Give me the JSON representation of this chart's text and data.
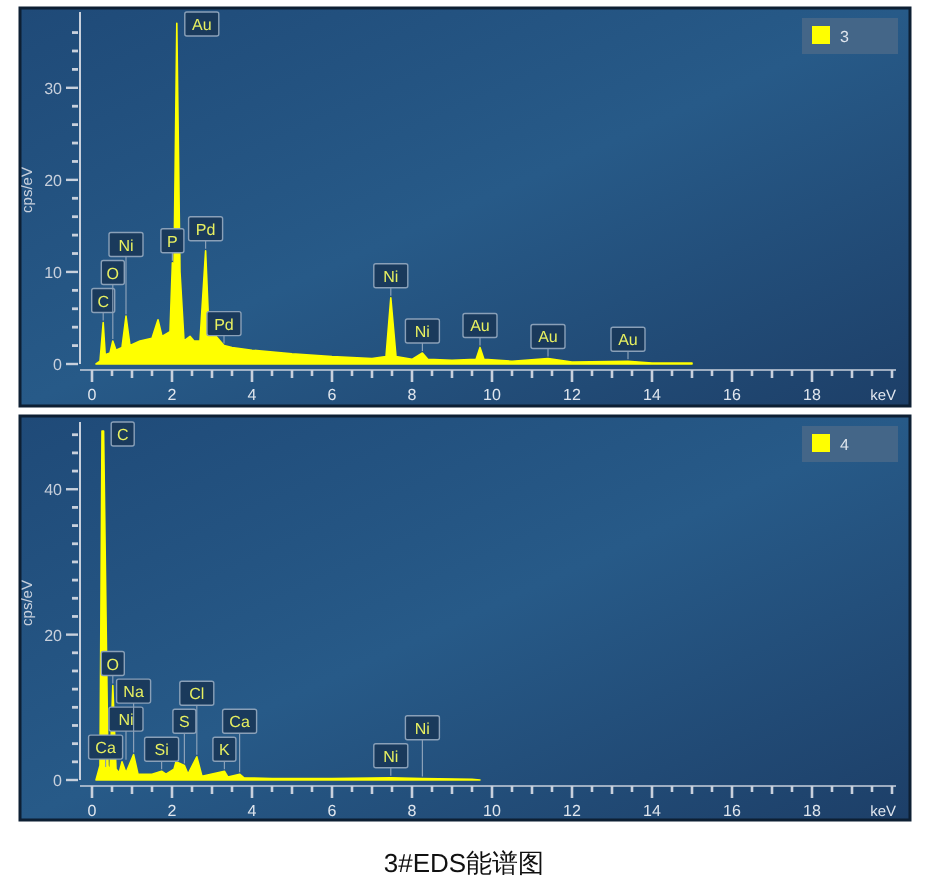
{
  "chart_data": [
    {
      "type": "area",
      "ylabel": "cps/eV",
      "xlabel": "keV",
      "xlim": [
        -0.3,
        20.1
      ],
      "ylim": [
        0,
        37.8
      ],
      "xticks": [
        0,
        2,
        4,
        6,
        8,
        10,
        12,
        14,
        16,
        18,
        {
          "value": 0.5,
          "label": null
        },
        {
          "value": 1,
          "label": null
        },
        {
          "value": 1.5,
          "label": null
        },
        {
          "value": 2.5,
          "label": null
        },
        {
          "value": 3,
          "label": null
        },
        {
          "value": 3.5,
          "label": null
        },
        {
          "value": 4.5,
          "label": null
        },
        {
          "value": 5,
          "label": null
        },
        {
          "value": 5.5,
          "label": null
        },
        {
          "value": 6.5,
          "label": null
        },
        {
          "value": 7,
          "label": null
        },
        {
          "value": 7.5,
          "label": null
        },
        {
          "value": 8.5,
          "label": null
        },
        {
          "value": 9,
          "label": null
        },
        {
          "value": 9.5,
          "label": null
        },
        {
          "value": 10.5,
          "label": null
        },
        {
          "value": 11,
          "label": null
        },
        {
          "value": 11.5,
          "label": null
        },
        {
          "value": 12.5,
          "label": null
        },
        {
          "value": 13,
          "label": null
        },
        {
          "value": 13.5,
          "label": null
        },
        {
          "value": 14.5,
          "label": null
        },
        {
          "value": 15,
          "label": null
        },
        {
          "value": 15.5,
          "label": null
        },
        {
          "value": 16.5,
          "label": null
        },
        {
          "value": 17,
          "label": null
        },
        {
          "value": 17.5,
          "label": null
        },
        {
          "value": 18.5,
          "label": null
        },
        {
          "value": 19,
          "label": null
        },
        {
          "value": 19.5,
          "label": null
        },
        {
          "value": 20,
          "label": null
        }
      ],
      "yticks": [
        0,
        10,
        20,
        30,
        {
          "value": 2,
          "label": null
        },
        {
          "value": 4,
          "label": null
        },
        {
          "value": 6,
          "label": null
        },
        {
          "value": 8,
          "label": null
        },
        {
          "value": 12,
          "label": null
        },
        {
          "value": 14,
          "label": null
        },
        {
          "value": 16,
          "label": null
        },
        {
          "value": 18,
          "label": null
        },
        {
          "value": 22,
          "label": null
        },
        {
          "value": 24,
          "label": null
        },
        {
          "value": 26,
          "label": null
        },
        {
          "value": 28,
          "label": null
        },
        {
          "value": 32,
          "label": null
        },
        {
          "value": 34,
          "label": null
        },
        {
          "value": 36,
          "label": null
        }
      ],
      "grid": false,
      "legend": "top right",
      "series": [
        {
          "name": "3",
          "color": "#ffff00",
          "x": [
            0.1,
            0.2,
            0.28,
            0.33,
            0.45,
            0.52,
            0.6,
            0.75,
            0.85,
            0.95,
            1.2,
            1.5,
            1.65,
            1.75,
            1.95,
            2.01,
            2.05,
            2.12,
            2.2,
            2.3,
            2.45,
            2.55,
            2.7,
            2.84,
            2.92,
            3.0,
            3.1,
            3.3,
            3.5,
            4,
            5,
            6,
            7,
            7.35,
            7.47,
            7.6,
            8.0,
            8.26,
            8.4,
            9.0,
            9.6,
            9.7,
            9.8,
            10.5,
            11.4,
            12,
            13.4,
            14,
            15
          ],
          "values": [
            0,
            0.3,
            4.5,
            1,
            1.2,
            2.5,
            1.5,
            1.8,
            5.2,
            2,
            2.5,
            2.8,
            4.8,
            3,
            3.5,
            11,
            10.5,
            37,
            10,
            2.5,
            3,
            2.5,
            2.5,
            12.3,
            4,
            5.5,
            3,
            2,
            1.8,
            1.5,
            1.1,
            0.8,
            0.6,
            0.8,
            7.2,
            0.8,
            0.5,
            1.2,
            0.5,
            0.4,
            0.5,
            1.8,
            0.5,
            0.3,
            0.6,
            0.2,
            0.3,
            0.1,
            0.1
          ]
        }
      ],
      "annotations": [
        {
          "text": "C",
          "x": 0.28,
          "y": 4.5
        },
        {
          "text": "O",
          "x": 0.52,
          "y": 2.5
        },
        {
          "text": "Ni",
          "x": 0.85,
          "y": 5.2
        },
        {
          "text": "P",
          "x": 2.01,
          "y": 11
        },
        {
          "text": "Au",
          "x": 2.12,
          "y": 37
        },
        {
          "text": "Pd",
          "x": 2.84,
          "y": 12.3
        },
        {
          "text": "Pd",
          "x": 3.3,
          "y": 2
        },
        {
          "text": "Ni",
          "x": 7.47,
          "y": 7.2
        },
        {
          "text": "Ni",
          "x": 8.26,
          "y": 1.2
        },
        {
          "text": "Au",
          "x": 9.7,
          "y": 1.8
        },
        {
          "text": "Au",
          "x": 11.4,
          "y": 0.6
        },
        {
          "text": "Au",
          "x": 13.4,
          "y": 0.3
        }
      ]
    },
    {
      "type": "area",
      "ylabel": "cps/eV",
      "xlabel": "keV",
      "xlim": [
        -0.3,
        20.1
      ],
      "ylim": [
        0,
        48.7
      ],
      "xticks": [
        0,
        2,
        4,
        6,
        8,
        10,
        12,
        14,
        16,
        18,
        {
          "value": 0.5,
          "label": null
        },
        {
          "value": 1,
          "label": null
        },
        {
          "value": 1.5,
          "label": null
        },
        {
          "value": 2.5,
          "label": null
        },
        {
          "value": 3,
          "label": null
        },
        {
          "value": 3.5,
          "label": null
        },
        {
          "value": 4.5,
          "label": null
        },
        {
          "value": 5,
          "label": null
        },
        {
          "value": 5.5,
          "label": null
        },
        {
          "value": 6.5,
          "label": null
        },
        {
          "value": 7,
          "label": null
        },
        {
          "value": 7.5,
          "label": null
        },
        {
          "value": 8.5,
          "label": null
        },
        {
          "value": 9,
          "label": null
        },
        {
          "value": 9.5,
          "label": null
        },
        {
          "value": 10.5,
          "label": null
        },
        {
          "value": 11,
          "label": null
        },
        {
          "value": 11.5,
          "label": null
        },
        {
          "value": 12.5,
          "label": null
        },
        {
          "value": 13,
          "label": null
        },
        {
          "value": 13.5,
          "label": null
        },
        {
          "value": 14.5,
          "label": null
        },
        {
          "value": 15,
          "label": null
        },
        {
          "value": 15.5,
          "label": null
        },
        {
          "value": 16.5,
          "label": null
        },
        {
          "value": 17,
          "label": null
        },
        {
          "value": 17.5,
          "label": null
        },
        {
          "value": 18.5,
          "label": null
        },
        {
          "value": 19,
          "label": null
        },
        {
          "value": 19.5,
          "label": null
        },
        {
          "value": 20,
          "label": null
        }
      ],
      "yticks": [
        0,
        20,
        40,
        {
          "value": 2.5,
          "label": null
        },
        {
          "value": 5,
          "label": null
        },
        {
          "value": 7.5,
          "label": null
        },
        {
          "value": 10,
          "label": null
        },
        {
          "value": 12.5,
          "label": null
        },
        {
          "value": 15,
          "label": null
        },
        {
          "value": 17.5,
          "label": null
        },
        {
          "value": 22.5,
          "label": null
        },
        {
          "value": 25,
          "label": null
        },
        {
          "value": 27.5,
          "label": null
        },
        {
          "value": 30,
          "label": null
        },
        {
          "value": 32.5,
          "label": null
        },
        {
          "value": 35,
          "label": null
        },
        {
          "value": 37.5,
          "label": null
        },
        {
          "value": 42.5,
          "label": null
        },
        {
          "value": 45,
          "label": null
        },
        {
          "value": 47.5,
          "label": null
        }
      ],
      "grid": false,
      "legend": "top right",
      "series": [
        {
          "name": "4",
          "color": "#ffff00",
          "x": [
            0.1,
            0.2,
            0.25,
            0.29,
            0.4,
            0.45,
            0.52,
            0.6,
            0.68,
            0.75,
            0.85,
            1.04,
            1.15,
            1.5,
            1.74,
            1.85,
            2.05,
            2.1,
            2.31,
            2.4,
            2.62,
            2.75,
            3.31,
            3.4,
            3.69,
            3.8,
            4.5,
            6,
            7.47,
            8.26,
            9.5,
            9.7
          ],
          "values": [
            0,
            2,
            48,
            48,
            2,
            1,
            13,
            1.5,
            1,
            2.5,
            1,
            3.5,
            0.8,
            0.8,
            1.2,
            0.8,
            1.5,
            2.5,
            2,
            0.8,
            3.2,
            0.5,
            1.2,
            0.4,
            0.8,
            0.3,
            0.2,
            0.2,
            0.3,
            0.2,
            0.1,
            0
          ]
        }
      ],
      "annotations": [
        {
          "text": "C",
          "x": 0.28,
          "y": 48
        },
        {
          "text": "O",
          "x": 0.52,
          "y": 13
        },
        {
          "text": "Ca",
          "x": 0.34,
          "y": 1.5
        },
        {
          "text": "Ni",
          "x": 0.85,
          "y": 2.5
        },
        {
          "text": "Na",
          "x": 1.04,
          "y": 3.5
        },
        {
          "text": "Si",
          "x": 1.74,
          "y": 1.2
        },
        {
          "text": "S",
          "x": 2.31,
          "y": 2
        },
        {
          "text": "Cl",
          "x": 2.62,
          "y": 3.2
        },
        {
          "text": "K",
          "x": 3.31,
          "y": 1.2
        },
        {
          "text": "Ca",
          "x": 3.69,
          "y": 0.8
        },
        {
          "text": "Ni",
          "x": 7.47,
          "y": 0.3
        },
        {
          "text": "Ni",
          "x": 8.26,
          "y": 0.2
        },
        "3#EDS能谱图"
      ]
    }
  ]
}
